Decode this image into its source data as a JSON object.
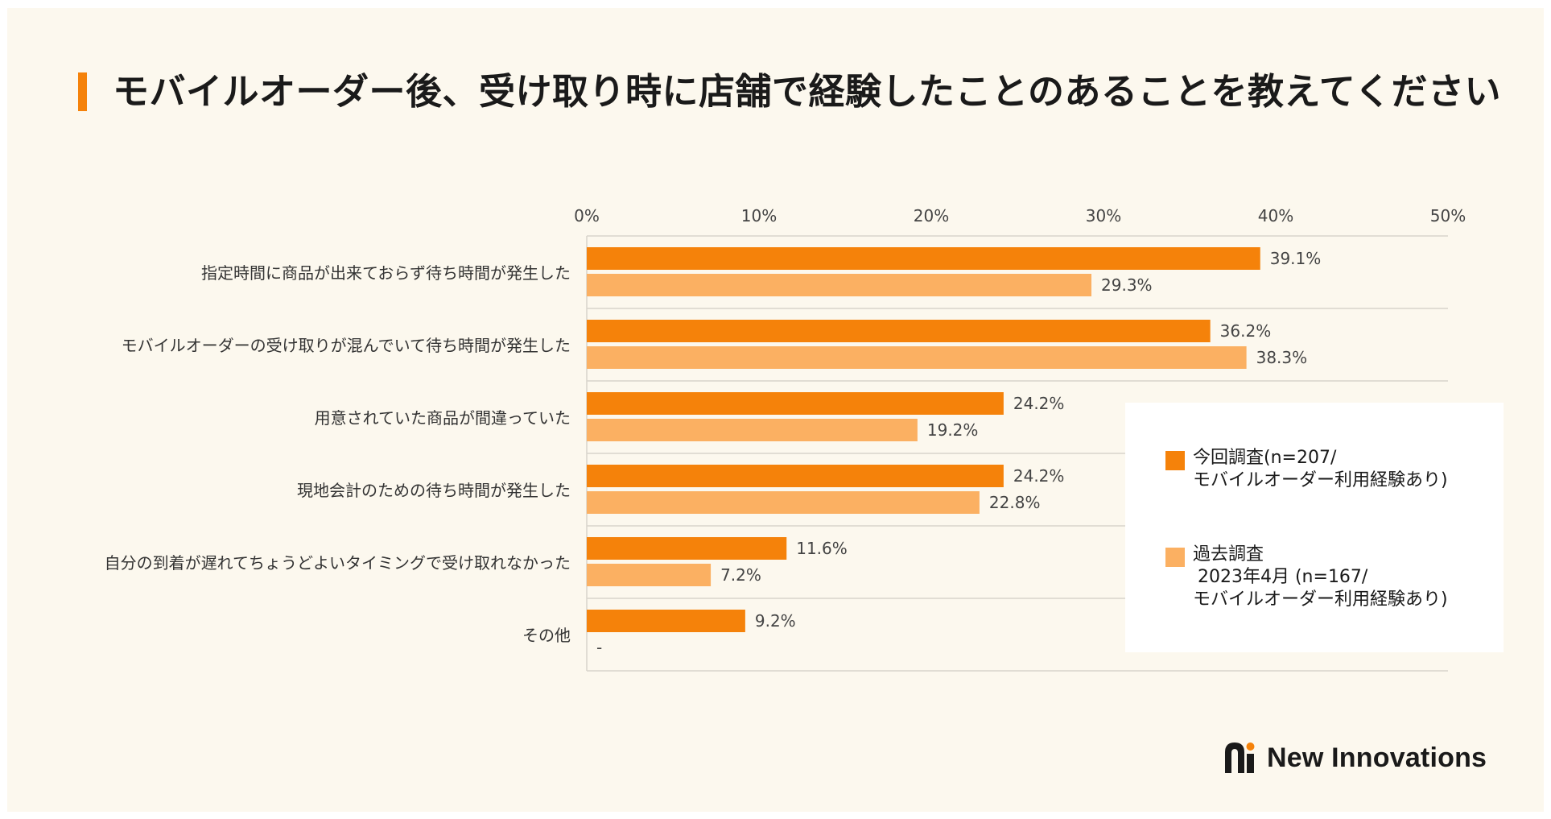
{
  "title": "モバイルオーダー後、受け取り時に店舗で経験したことのあることを教えてください",
  "colors": {
    "current": "#f5820a",
    "past": "#fbb062",
    "accent": "#f5820a"
  },
  "chart_data": {
    "type": "bar",
    "orientation": "horizontal",
    "categories": [
      "指定時間に商品が出来ておらず待ち時間が発生した",
      "モバイルオーダーの受け取りが混んでいて待ち時間が発生した",
      "用意されていた商品が間違っていた",
      "現地会計のための待ち時間が発生した",
      "自分の到着が遅れてちょうどよいタイミングで受け取れなかった",
      "その他"
    ],
    "series": [
      {
        "name": "今回調査(n=207/ モバイルオーダー利用経験あり)",
        "values": [
          39.1,
          36.2,
          24.2,
          24.2,
          11.6,
          9.2
        ],
        "labels": [
          "39.1%",
          "36.2%",
          "24.2%",
          "24.2%",
          "11.6%",
          "9.2%"
        ]
      },
      {
        "name": "過去調査 2023年4月 (n=167/ モバイルオーダー利用経験あり)",
        "values": [
          29.3,
          38.3,
          19.2,
          22.8,
          7.2,
          null
        ],
        "labels": [
          "29.3%",
          "38.3%",
          "19.2%",
          "22.8%",
          "7.2%",
          "-"
        ]
      }
    ],
    "xlim": [
      0,
      50
    ],
    "xticks": [
      "0%",
      "10%",
      "20%",
      "30%",
      "40%",
      "50%"
    ],
    "legend_position": "bottom-right"
  },
  "legend": {
    "current": {
      "line1": "今回調査(n=207/",
      "line2": "モバイルオーダー利用経験あり)"
    },
    "past": {
      "line1": "過去調査",
      "line2": "2023年4月 (n=167/",
      "line3": "モバイルオーダー利用経験あり)"
    }
  },
  "logo": {
    "text": "New Innovations",
    "icon": "new-innovations-logo-icon"
  }
}
